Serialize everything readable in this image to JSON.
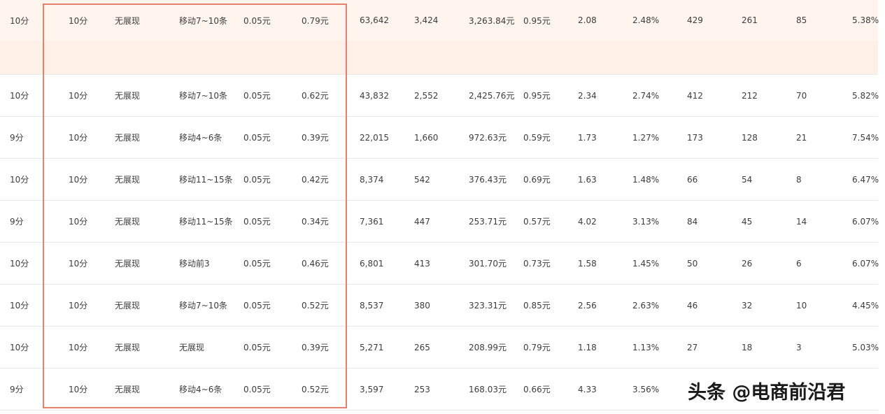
{
  "rows": [
    {
      "c0": "10分",
      "c1": "10分",
      "c2": "无展现",
      "c3": "移动7~10条",
      "c4": "0.05元",
      "c5": "0.79元",
      "c6": "63,642",
      "c7": "3,424",
      "c8": "3,263.84元",
      "c9": "0.95元",
      "c10": "2.08",
      "c11": "2.48%",
      "c12": "429",
      "c13": "261",
      "c14": "85",
      "c15": "5.38%"
    },
    {
      "c0": "10分",
      "c1": "10分",
      "c2": "无展现",
      "c3": "移动7~10条",
      "c4": "0.05元",
      "c5": "0.62元",
      "c6": "43,832",
      "c7": "2,552",
      "c8": "2,425.76元",
      "c9": "0.95元",
      "c10": "2.34",
      "c11": "2.74%",
      "c12": "412",
      "c13": "212",
      "c14": "70",
      "c15": "5.82%"
    },
    {
      "c0": "9分",
      "c1": "10分",
      "c2": "无展现",
      "c3": "移动4~6条",
      "c4": "0.05元",
      "c5": "0.39元",
      "c6": "22,015",
      "c7": "1,660",
      "c8": "972.63元",
      "c9": "0.59元",
      "c10": "1.73",
      "c11": "1.27%",
      "c12": "173",
      "c13": "128",
      "c14": "21",
      "c15": "7.54%"
    },
    {
      "c0": "10分",
      "c1": "10分",
      "c2": "无展现",
      "c3": "移动11~15条",
      "c4": "0.05元",
      "c5": "0.42元",
      "c6": "8,374",
      "c7": "542",
      "c8": "376.43元",
      "c9": "0.69元",
      "c10": "1.63",
      "c11": "1.48%",
      "c12": "66",
      "c13": "54",
      "c14": "8",
      "c15": "6.47%"
    },
    {
      "c0": "9分",
      "c1": "10分",
      "c2": "无展现",
      "c3": "移动11~15条",
      "c4": "0.05元",
      "c5": "0.34元",
      "c6": "7,361",
      "c7": "447",
      "c8": "253.71元",
      "c9": "0.57元",
      "c10": "4.02",
      "c11": "3.13%",
      "c12": "84",
      "c13": "45",
      "c14": "14",
      "c15": "6.07%"
    },
    {
      "c0": "10分",
      "c1": "10分",
      "c2": "无展现",
      "c3": "移动前3",
      "c4": "0.05元",
      "c5": "0.46元",
      "c6": "6,801",
      "c7": "413",
      "c8": "301.70元",
      "c9": "0.73元",
      "c10": "1.58",
      "c11": "1.45%",
      "c12": "50",
      "c13": "26",
      "c14": "6",
      "c15": "6.07%"
    },
    {
      "c0": "10分",
      "c1": "10分",
      "c2": "无展现",
      "c3": "移动7~10条",
      "c4": "0.05元",
      "c5": "0.52元",
      "c6": "8,537",
      "c7": "380",
      "c8": "323.31元",
      "c9": "0.85元",
      "c10": "2.56",
      "c11": "2.63%",
      "c12": "46",
      "c13": "32",
      "c14": "10",
      "c15": "4.45%"
    },
    {
      "c0": "10分",
      "c1": "10分",
      "c2": "无展现",
      "c3": "无展现",
      "c4": "0.05元",
      "c5": "0.39元",
      "c6": "5,271",
      "c7": "265",
      "c8": "208.99元",
      "c9": "0.79元",
      "c10": "1.18",
      "c11": "1.13%",
      "c12": "27",
      "c13": "18",
      "c14": "3",
      "c15": "5.03%"
    },
    {
      "c0": "9分",
      "c1": "10分",
      "c2": "无展现",
      "c3": "移动4~6条",
      "c4": "0.05元",
      "c5": "0.52元",
      "c6": "3,597",
      "c7": "253",
      "c8": "168.03元",
      "c9": "0.66元",
      "c10": "4.33",
      "c11": "3.56%",
      "c12": "",
      "c13": "",
      "c14": "",
      "c15": ""
    }
  ],
  "watermark": "头条 @电商前沿君",
  "colors": {
    "highlight_row": "#fff5ee",
    "selection_border": "#e8806e",
    "row_border": "#e8e8e8"
  }
}
